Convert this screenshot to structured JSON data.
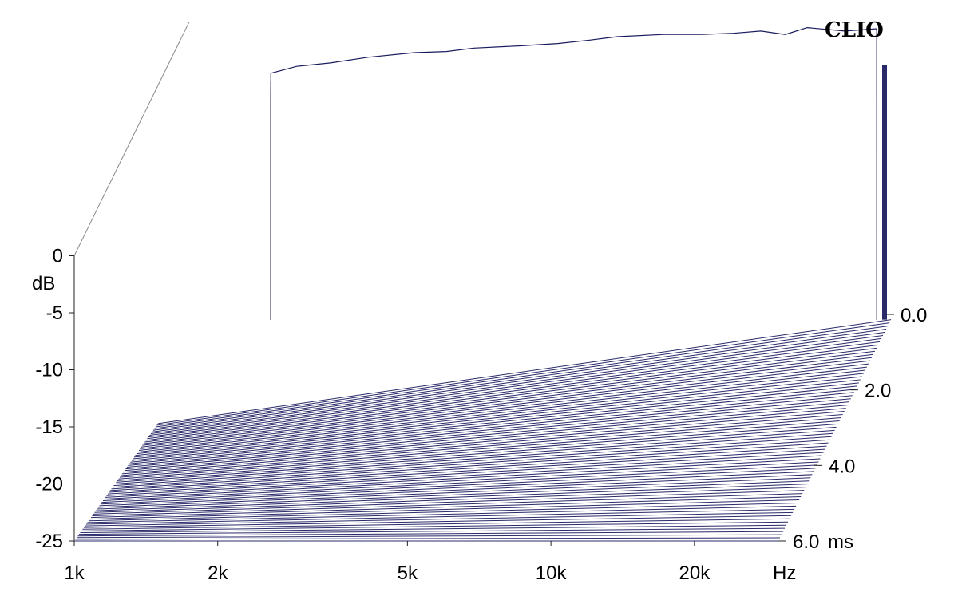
{
  "brand": "CLIO",
  "colors": {
    "trace": "#1a1a5e",
    "floor": "#2a2a6a",
    "frame": "#8a8a8a",
    "background": "#ffffff"
  },
  "chart_data": {
    "type": "waterfall",
    "title": "",
    "x_axis": {
      "scale": "log",
      "range": [
        1000,
        30000
      ],
      "unit_label": "Hz",
      "ticks": [
        {
          "value": 1000,
          "label": "1k"
        },
        {
          "value": 2000,
          "label": "2k"
        },
        {
          "value": 5000,
          "label": "5k"
        },
        {
          "value": 10000,
          "label": "10k"
        },
        {
          "value": 20000,
          "label": "20k"
        }
      ]
    },
    "y_axis": {
      "range": [
        -25,
        0
      ],
      "unit_label": "dB",
      "ticks": [
        {
          "value": 0,
          "label": "0"
        },
        {
          "value": -5,
          "label": "-5"
        },
        {
          "value": -10,
          "label": "-10"
        },
        {
          "value": -15,
          "label": "-15"
        },
        {
          "value": -20,
          "label": "-20"
        },
        {
          "value": -25,
          "label": "-25"
        }
      ]
    },
    "z_axis": {
      "range": [
        0,
        6.0
      ],
      "unit_label": "ms",
      "ticks": [
        {
          "value": 0.0,
          "label": "0.0"
        },
        {
          "value": 2.0,
          "label": "2.0"
        },
        {
          "value": 4.0,
          "label": "4.0"
        },
        {
          "value": 6.0,
          "label": "6.0"
        }
      ]
    },
    "slices_shown": 15,
    "frequencies_hz": [
      1500,
      1700,
      2000,
      2400,
      3000,
      3500,
      4000,
      5000,
      6000,
      7000,
      8000,
      10000,
      12000,
      14000,
      16000,
      18000,
      20000,
      24000,
      28000
    ],
    "first_slice_db": [
      -3.4,
      -2.8,
      -2.5,
      -2.0,
      -1.6,
      -1.5,
      -1.2,
      -1.0,
      -0.8,
      -0.5,
      -0.2,
      0.0,
      0.0,
      0.1,
      0.3,
      0.0,
      0.6,
      0.3,
      0.5
    ],
    "decay_db_per_slice": [
      0.5,
      0.4,
      0.3,
      0.8,
      0.9,
      0.7,
      0.8,
      0.9,
      0.6,
      0.9,
      1.1,
      0.8,
      0.8,
      1.3,
      1.2,
      0.9,
      0.9,
      1.0,
      1.0
    ]
  }
}
